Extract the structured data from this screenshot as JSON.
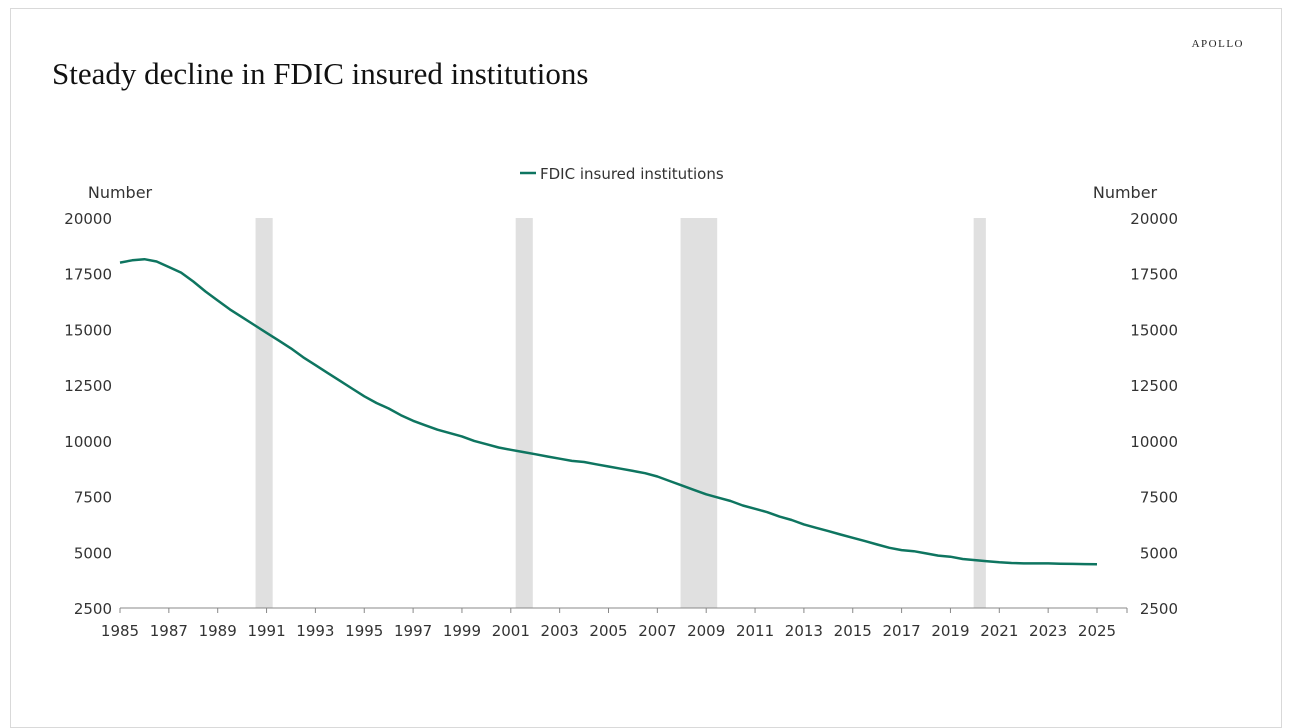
{
  "brand": "APOLLO",
  "title": "Steady decline in FDIC insured institutions",
  "chart_data": {
    "type": "line",
    "title": "Steady decline in FDIC insured institutions",
    "ylabel_left": "Number",
    "ylabel_right": "Number",
    "xlabel": "",
    "ylim": [
      2500,
      20000
    ],
    "xlim": [
      1985,
      2025
    ],
    "y_ticks": [
      2500,
      5000,
      7500,
      10000,
      12500,
      15000,
      17500,
      20000
    ],
    "y_tick_labels": [
      "2500",
      "5000",
      "7500",
      "10000",
      "12500",
      "15000",
      "17500",
      "20000"
    ],
    "x_ticks": [
      1985,
      1987,
      1989,
      1991,
      1993,
      1995,
      1997,
      1999,
      2001,
      2003,
      2005,
      2007,
      2009,
      2011,
      2013,
      2015,
      2017,
      2019,
      2021,
      2023,
      2025
    ],
    "x_tick_labels": [
      "1985",
      "1987",
      "1989",
      "1991",
      "1993",
      "1995",
      "1997",
      "1999",
      "2001",
      "2003",
      "2005",
      "2007",
      "2009",
      "2011",
      "2013",
      "2015",
      "2017",
      "2019",
      "2021",
      "2023",
      "2025"
    ],
    "legend_position": "top-center",
    "recessions": [
      {
        "start": 1990.55,
        "end": 1991.25
      },
      {
        "start": 2001.2,
        "end": 2001.9
      },
      {
        "start": 2007.95,
        "end": 2009.45
      },
      {
        "start": 2019.95,
        "end": 2020.45
      }
    ],
    "series": [
      {
        "name": "FDIC insured institutions",
        "color": "#0e7560",
        "x": [
          1985,
          1985.5,
          1986,
          1986.5,
          1987,
          1987.5,
          1988,
          1988.5,
          1989,
          1989.5,
          1990,
          1990.5,
          1991,
          1991.5,
          1992,
          1992.5,
          1993,
          1993.5,
          1994,
          1994.5,
          1995,
          1995.5,
          1996,
          1996.5,
          1997,
          1997.5,
          1998,
          1998.5,
          1999,
          1999.5,
          2000,
          2000.5,
          2001,
          2001.5,
          2002,
          2002.5,
          2003,
          2003.5,
          2004,
          2004.5,
          2005,
          2005.5,
          2006,
          2006.5,
          2007,
          2007.5,
          2008,
          2008.5,
          2009,
          2009.5,
          2010,
          2010.5,
          2011,
          2011.5,
          2012,
          2012.5,
          2013,
          2013.5,
          2014,
          2014.5,
          2015,
          2015.5,
          2016,
          2016.5,
          2017,
          2017.5,
          2018,
          2018.5,
          2019,
          2019.5,
          2020,
          2020.5,
          2021,
          2021.5,
          2022,
          2022.5,
          2023,
          2023.5,
          2024,
          2024.5,
          2025
        ],
        "values": [
          18000,
          18100,
          18150,
          18050,
          17800,
          17550,
          17150,
          16700,
          16300,
          15900,
          15550,
          15200,
          14850,
          14500,
          14150,
          13750,
          13400,
          13050,
          12700,
          12350,
          12000,
          11700,
          11450,
          11150,
          10900,
          10700,
          10500,
          10350,
          10200,
          10000,
          9850,
          9700,
          9600,
          9500,
          9400,
          9300,
          9200,
          9100,
          9050,
          8950,
          8850,
          8750,
          8650,
          8550,
          8400,
          8200,
          8000,
          7800,
          7600,
          7450,
          7300,
          7100,
          6950,
          6800,
          6600,
          6450,
          6250,
          6100,
          5950,
          5800,
          5650,
          5500,
          5350,
          5200,
          5100,
          5050,
          4950,
          4850,
          4800,
          4700,
          4650,
          4600,
          4550,
          4520,
          4500,
          4500,
          4500,
          4490,
          4480,
          4470,
          4460
        ]
      }
    ]
  }
}
